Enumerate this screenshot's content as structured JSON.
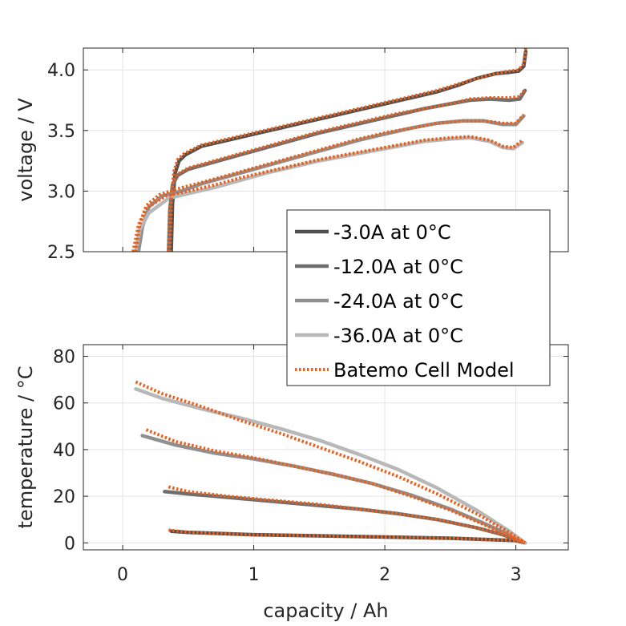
{
  "chart_data": [
    {
      "type": "line",
      "ylabel": "voltage / V",
      "xlim": [
        -0.3,
        3.4
      ],
      "ylim": [
        2.5,
        4.18
      ],
      "xticks": [
        0,
        1,
        2,
        3
      ],
      "yticks": [
        2.5,
        3.0,
        3.5,
        4.0
      ],
      "ytick_labels": [
        "2.5",
        "3.0",
        "3.5",
        "4.0"
      ],
      "grid": true,
      "series": [
        {
          "name": "-3.0A at 0°C",
          "color": "#505050",
          "x": [
            0.37,
            0.38,
            0.4,
            0.43,
            0.48,
            0.6,
            0.8,
            1.0,
            1.2,
            1.4,
            1.6,
            1.8,
            2.0,
            2.2,
            2.4,
            2.55,
            2.7,
            2.85,
            2.95,
            3.02,
            3.06,
            3.075
          ],
          "y": [
            2.5,
            2.9,
            3.15,
            3.25,
            3.3,
            3.37,
            3.42,
            3.47,
            3.52,
            3.57,
            3.62,
            3.67,
            3.72,
            3.77,
            3.82,
            3.87,
            3.93,
            3.97,
            3.98,
            3.99,
            4.03,
            4.15
          ]
        },
        {
          "name": "-12.0A at 0°C",
          "color": "#6e6e6e",
          "x": [
            0.35,
            0.36,
            0.38,
            0.42,
            0.5,
            0.7,
            0.9,
            1.1,
            1.3,
            1.5,
            1.7,
            1.9,
            2.1,
            2.3,
            2.5,
            2.65,
            2.8,
            2.95,
            3.03,
            3.07
          ],
          "y": [
            2.5,
            2.85,
            3.05,
            3.13,
            3.18,
            3.24,
            3.3,
            3.36,
            3.42,
            3.48,
            3.53,
            3.58,
            3.63,
            3.68,
            3.72,
            3.75,
            3.76,
            3.75,
            3.76,
            3.83
          ]
        },
        {
          "name": "-24.0A at 0°C",
          "color": "#909090",
          "x": [
            0.12,
            0.15,
            0.2,
            0.3,
            0.45,
            0.6,
            0.8,
            1.0,
            1.2,
            1.4,
            1.6,
            1.8,
            2.0,
            2.2,
            2.4,
            2.6,
            2.75,
            2.9,
            3.0,
            3.06
          ],
          "y": [
            2.5,
            2.7,
            2.87,
            2.96,
            3.0,
            3.06,
            3.12,
            3.18,
            3.24,
            3.3,
            3.36,
            3.42,
            3.47,
            3.52,
            3.56,
            3.58,
            3.58,
            3.55,
            3.55,
            3.62
          ]
        },
        {
          "name": "-36.0A at 0°C",
          "color": "#b8b8b8",
          "x": [
            0.1,
            0.13,
            0.2,
            0.35,
            0.5,
            0.7,
            0.9,
            1.1,
            1.3,
            1.5,
            1.7,
            1.9,
            2.1,
            2.3,
            2.5,
            2.65,
            2.8,
            2.9,
            2.98,
            3.05
          ],
          "y": [
            2.5,
            2.68,
            2.82,
            2.94,
            2.98,
            3.03,
            3.09,
            3.15,
            3.2,
            3.25,
            3.29,
            3.33,
            3.37,
            3.41,
            3.43,
            3.44,
            3.41,
            3.36,
            3.35,
            3.4
          ]
        },
        {
          "name": "Batemo Cell Model",
          "color": "#e8601c",
          "dash": true,
          "x": [
            0.35,
            0.36,
            0.38,
            0.42,
            0.5,
            0.7,
            0.9,
            1.1,
            1.3,
            1.5,
            1.7,
            1.9,
            2.1,
            2.3,
            2.5,
            2.65,
            2.8,
            2.95,
            3.03,
            3.07
          ],
          "y": [
            2.5,
            2.85,
            3.06,
            3.14,
            3.19,
            3.25,
            3.31,
            3.37,
            3.43,
            3.49,
            3.54,
            3.59,
            3.64,
            3.68,
            3.72,
            3.76,
            3.77,
            3.77,
            3.78,
            3.84
          ]
        },
        {
          "name": "",
          "color": "#e8601c",
          "dash": true,
          "x": [
            0.36,
            0.37,
            0.39,
            0.42,
            0.47,
            0.6,
            0.8,
            1.0,
            1.2,
            1.4,
            1.6,
            1.8,
            2.0,
            2.2,
            2.4,
            2.55,
            2.7,
            2.85,
            2.95,
            3.02,
            3.06,
            3.075
          ],
          "y": [
            2.5,
            2.9,
            3.16,
            3.26,
            3.31,
            3.38,
            3.43,
            3.48,
            3.53,
            3.58,
            3.63,
            3.68,
            3.73,
            3.78,
            3.83,
            3.88,
            3.93,
            3.97,
            3.99,
            4.0,
            4.05,
            4.18
          ]
        },
        {
          "name": "",
          "color": "#e8601c",
          "dash": true,
          "x": [
            0.1,
            0.13,
            0.18,
            0.28,
            0.42,
            0.6,
            0.8,
            1.0,
            1.2,
            1.4,
            1.6,
            1.8,
            2.0,
            2.2,
            2.4,
            2.6,
            2.75,
            2.9,
            3.0,
            3.06
          ],
          "y": [
            2.5,
            2.72,
            2.88,
            2.97,
            3.02,
            3.07,
            3.13,
            3.19,
            3.25,
            3.31,
            3.37,
            3.43,
            3.48,
            3.52,
            3.56,
            3.58,
            3.58,
            3.56,
            3.56,
            3.63
          ]
        },
        {
          "name": "",
          "color": "#e8601c",
          "dash": true,
          "x": [
            0.08,
            0.12,
            0.18,
            0.33,
            0.5,
            0.7,
            0.9,
            1.1,
            1.3,
            1.5,
            1.7,
            1.9,
            2.1,
            2.3,
            2.5,
            2.65,
            2.8,
            2.9,
            2.98,
            3.05
          ],
          "y": [
            2.5,
            2.72,
            2.86,
            2.96,
            3.0,
            3.05,
            3.11,
            3.16,
            3.21,
            3.26,
            3.3,
            3.34,
            3.38,
            3.42,
            3.44,
            3.45,
            3.42,
            3.37,
            3.36,
            3.42
          ]
        }
      ]
    },
    {
      "type": "line",
      "xlabel": "capacity / Ah",
      "ylabel": "temperature / °C",
      "xlim": [
        -0.3,
        3.4
      ],
      "ylim": [
        -3,
        85
      ],
      "xticks": [
        0,
        1,
        2,
        3
      ],
      "xtick_labels": [
        "0",
        "1",
        "2",
        "3"
      ],
      "yticks": [
        0,
        20,
        40,
        60,
        80
      ],
      "ytick_labels": [
        "0",
        "20",
        "40",
        "60",
        "80"
      ],
      "grid": true,
      "series": [
        {
          "name": "-3.0A at 0°C",
          "color": "#505050",
          "x": [
            0.37,
            0.5,
            1.0,
            1.5,
            2.0,
            2.5,
            3.0,
            3.07
          ],
          "y": [
            5,
            4.5,
            3.5,
            3,
            2.5,
            2,
            1,
            0
          ]
        },
        {
          "name": "-12.0A at 0°C",
          "color": "#6e6e6e",
          "x": [
            0.32,
            0.5,
            0.8,
            1.1,
            1.5,
            1.8,
            2.1,
            2.4,
            2.7,
            2.9,
            3.07
          ],
          "y": [
            22,
            21,
            19.5,
            18,
            16,
            14.5,
            12.5,
            10,
            6.5,
            3.5,
            0
          ]
        },
        {
          "name": "-24.0A at 0°C",
          "color": "#909090",
          "x": [
            0.15,
            0.4,
            0.7,
            1.0,
            1.3,
            1.6,
            1.9,
            2.2,
            2.5,
            2.75,
            2.95,
            3.07
          ],
          "y": [
            46,
            42,
            38.5,
            36,
            33,
            29.5,
            25.5,
            20.5,
            14.5,
            8.5,
            3.5,
            0
          ]
        },
        {
          "name": "-36.0A at 0°C",
          "color": "#b8b8b8",
          "x": [
            0.1,
            0.3,
            0.6,
            0.9,
            1.2,
            1.5,
            1.8,
            2.1,
            2.4,
            2.7,
            2.95,
            3.07
          ],
          "y": [
            66,
            62,
            57.5,
            53.5,
            49,
            44,
            38,
            31.5,
            23.5,
            14,
            5,
            0
          ]
        },
        {
          "name": "Batemo Cell Model",
          "color": "#e8601c",
          "dash": true,
          "x": [
            0.35,
            0.5,
            0.8,
            1.1,
            1.5,
            1.8,
            2.1,
            2.4,
            2.7,
            2.9,
            3.07
          ],
          "y": [
            24,
            22,
            20,
            18.5,
            16.5,
            14.5,
            12.5,
            10,
            6.5,
            3.5,
            0
          ]
        },
        {
          "name": "",
          "color": "#e8601c",
          "dash": true,
          "x": [
            0.35,
            0.5,
            1.0,
            1.5,
            2.0,
            2.5,
            3.0,
            3.07
          ],
          "y": [
            5.5,
            4.5,
            3.5,
            3,
            2.5,
            2,
            1,
            0
          ]
        },
        {
          "name": "",
          "color": "#e8601c",
          "dash": true,
          "x": [
            0.18,
            0.4,
            0.7,
            1.0,
            1.3,
            1.6,
            1.9,
            2.2,
            2.5,
            2.75,
            2.95,
            3.07
          ],
          "y": [
            48.5,
            43.5,
            39.5,
            36.5,
            33,
            29.5,
            25.5,
            20,
            14,
            8,
            3,
            0
          ]
        },
        {
          "name": "",
          "color": "#e8601c",
          "dash": true,
          "x": [
            0.1,
            0.3,
            0.6,
            0.9,
            1.2,
            1.5,
            1.8,
            2.1,
            2.4,
            2.7,
            2.95,
            3.07
          ],
          "y": [
            69,
            64,
            58.5,
            52.5,
            47,
            41,
            35,
            28.5,
            21,
            12.5,
            4.5,
            0
          ]
        }
      ]
    }
  ],
  "legend": {
    "placement": "between-panels-right",
    "entries": [
      {
        "label": "-3.0A at 0°C",
        "color": "#505050",
        "dash": false
      },
      {
        "label": "-12.0A at 0°C",
        "color": "#6e6e6e",
        "dash": false
      },
      {
        "label": "-24.0A at 0°C",
        "color": "#909090",
        "dash": false
      },
      {
        "label": "-36.0A at 0°C",
        "color": "#b8b8b8",
        "dash": false
      },
      {
        "label": "Batemo Cell Model",
        "color": "#e8601c",
        "dash": true
      }
    ]
  }
}
